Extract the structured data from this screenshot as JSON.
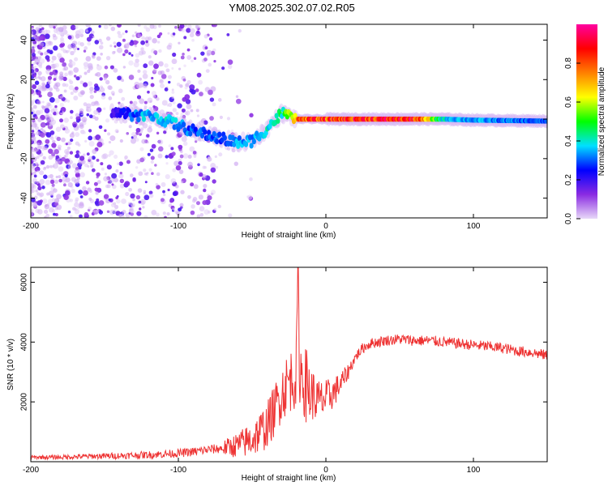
{
  "title": "YM08.2025.302.07.02.R05",
  "chart_data": [
    {
      "type": "heatmap",
      "name": "spectrogram",
      "xlabel": "Height of straight line (km)",
      "ylabel": "Frequency (Hz)",
      "xlim": [
        -200,
        150
      ],
      "ylim": [
        -50,
        48
      ],
      "x_ticks": [
        -200,
        -100,
        0,
        100
      ],
      "x_tick_labels": [
        "-200",
        "-100",
        "0",
        "100"
      ],
      "y_ticks": [
        -40,
        -20,
        0,
        20,
        40
      ],
      "y_tick_labels": [
        "-40",
        "-20",
        "0",
        "20",
        "40"
      ],
      "colorbar": {
        "label": "Normalized spectral amplitude",
        "range": [
          0,
          1
        ],
        "ticks": [
          0.0,
          0.2,
          0.4,
          0.6,
          0.8
        ],
        "tick_labels": [
          "0.0",
          "0.2",
          "0.4",
          "0.6",
          "0.8"
        ],
        "colors": [
          "#e8d8f8",
          "#8a2be2",
          "#0000ff",
          "#00e0ff",
          "#00ff00",
          "#ffff00",
          "#ff8000",
          "#ff0000",
          "#ff00a0"
        ]
      },
      "ridge": [
        {
          "x": -140,
          "f": 3,
          "amp": 0.25
        },
        {
          "x": -125,
          "f": 2,
          "amp": 0.35
        },
        {
          "x": -115,
          "f": 1,
          "amp": 0.4
        },
        {
          "x": -100,
          "f": -3,
          "amp": 0.35
        },
        {
          "x": -90,
          "f": -6,
          "amp": 0.3
        },
        {
          "x": -80,
          "f": -8,
          "amp": 0.3
        },
        {
          "x": -70,
          "f": -10,
          "amp": 0.3
        },
        {
          "x": -60,
          "f": -12,
          "amp": 0.35
        },
        {
          "x": -50,
          "f": -11,
          "amp": 0.35
        },
        {
          "x": -40,
          "f": -5,
          "amp": 0.4
        },
        {
          "x": -30,
          "f": 3,
          "amp": 0.45
        },
        {
          "x": -20,
          "f": 0,
          "amp": 0.8
        },
        {
          "x": -10,
          "f": 0,
          "amp": 0.85
        },
        {
          "x": 0,
          "f": 0,
          "amp": 0.85
        },
        {
          "x": 20,
          "f": 0,
          "amp": 0.9
        },
        {
          "x": 60,
          "f": 0,
          "amp": 0.9
        },
        {
          "x": 80,
          "f": 0,
          "amp": 0.4
        },
        {
          "x": 100,
          "f": -0.5,
          "amp": 0.35
        },
        {
          "x": 150,
          "f": -1,
          "amp": 0.3
        }
      ]
    },
    {
      "type": "line",
      "name": "snr",
      "xlabel": "Height of straight line (km)",
      "ylabel": "SNR (10 * v/v)",
      "xlim": [
        -200,
        150
      ],
      "ylim": [
        0,
        6500
      ],
      "x_ticks": [
        -200,
        -100,
        0,
        100
      ],
      "x_tick_labels": [
        "-200",
        "-100",
        "0",
        "100"
      ],
      "y_ticks": [
        2000,
        4000,
        6000
      ],
      "y_tick_labels": [
        "2000",
        "4000",
        "6000"
      ],
      "color": "#ee3333",
      "series": [
        {
          "name": "SNR",
          "x": [
            -200,
            -180,
            -160,
            -140,
            -120,
            -100,
            -90,
            -80,
            -70,
            -60,
            -50,
            -40,
            -35,
            -30,
            -25,
            -20,
            -19,
            -18,
            -15,
            -10,
            -5,
            0,
            5,
            10,
            15,
            20,
            25,
            30,
            40,
            50,
            60,
            70,
            80,
            90,
            100,
            110,
            120,
            130,
            140,
            150
          ],
          "y": [
            150,
            150,
            180,
            200,
            230,
            280,
            330,
            400,
            450,
            550,
            750,
            1200,
            1700,
            2300,
            2700,
            2900,
            6500,
            3200,
            2700,
            2300,
            2000,
            2100,
            2300,
            2600,
            3000,
            3500,
            3800,
            3950,
            4050,
            4100,
            4050,
            4050,
            4000,
            3950,
            3900,
            3850,
            3800,
            3700,
            3650,
            3550
          ]
        }
      ]
    }
  ]
}
